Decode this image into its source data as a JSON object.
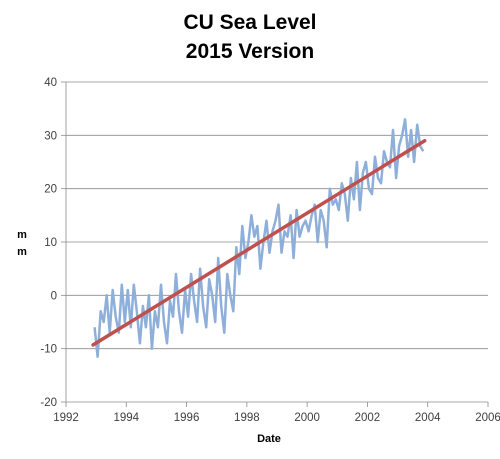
{
  "chart_data": {
    "type": "line",
    "title": [
      "CU Sea Level",
      "2015 Version"
    ],
    "xlabel": "Date",
    "ylabel": "m m",
    "xlim": [
      1992,
      2006
    ],
    "ylim": [
      -20,
      40
    ],
    "xticks": [
      1992,
      1994,
      1996,
      1998,
      2000,
      2002,
      2004,
      2006
    ],
    "yticks": [
      -20,
      -10,
      0,
      10,
      20,
      30,
      40
    ],
    "grid": "horizontal",
    "legend": "none",
    "series": [
      {
        "type": "line",
        "color": "#8EAFD9",
        "x": [
          1992.95,
          1993.05,
          1993.15,
          1993.25,
          1993.35,
          1993.45,
          1993.55,
          1993.65,
          1993.75,
          1993.85,
          1993.95,
          1994.05,
          1994.15,
          1994.25,
          1994.35,
          1994.45,
          1994.55,
          1994.65,
          1994.75,
          1994.85,
          1994.95,
          1995.05,
          1995.15,
          1995.25,
          1995.35,
          1995.45,
          1995.55,
          1995.65,
          1995.75,
          1995.85,
          1995.95,
          1996.05,
          1996.15,
          1996.25,
          1996.35,
          1996.45,
          1996.55,
          1996.65,
          1996.75,
          1996.85,
          1996.95,
          1997.05,
          1997.15,
          1997.25,
          1997.35,
          1997.45,
          1997.55,
          1997.65,
          1997.75,
          1997.85,
          1997.95,
          1998.05,
          1998.15,
          1998.25,
          1998.35,
          1998.45,
          1998.55,
          1998.65,
          1998.75,
          1998.85,
          1998.95,
          1999.05,
          1999.15,
          1999.25,
          1999.35,
          1999.45,
          1999.55,
          1999.65,
          1999.75,
          1999.85,
          1999.95,
          2000.05,
          2000.15,
          2000.25,
          2000.35,
          2000.45,
          2000.55,
          2000.65,
          2000.75,
          2000.85,
          2000.95,
          2001.05,
          2001.15,
          2001.25,
          2001.35,
          2001.45,
          2001.55,
          2001.65,
          2001.75,
          2001.85,
          2001.95,
          2002.05,
          2002.15,
          2002.25,
          2002.35,
          2002.45,
          2002.55,
          2002.65,
          2002.75,
          2002.85,
          2002.95,
          2003.05,
          2003.15,
          2003.25,
          2003.35,
          2003.45,
          2003.55,
          2003.65,
          2003.75,
          2003.85
        ],
        "y": [
          -6,
          -11.5,
          -3,
          -5,
          0,
          -7,
          1,
          -4,
          -7,
          2,
          -5,
          1,
          -6,
          2,
          -3,
          -9,
          -2,
          -6,
          0,
          -10,
          -3,
          -6,
          2,
          -5,
          -9,
          -1,
          -4,
          4,
          -3,
          -7,
          1,
          -4,
          4,
          -1,
          -5,
          5,
          -2,
          -6,
          3,
          0,
          -5,
          7,
          -2,
          -7,
          4,
          0,
          -3,
          9,
          4,
          13,
          7,
          10,
          15,
          11,
          13,
          5,
          10,
          14,
          8,
          12,
          14,
          17,
          8,
          12,
          11,
          15,
          7,
          16,
          11,
          13,
          14,
          12,
          15,
          17,
          10,
          16,
          14,
          9,
          20,
          17,
          18,
          16,
          21,
          19,
          14,
          22,
          18,
          25,
          16,
          23,
          25,
          20,
          19,
          26,
          22,
          21,
          27,
          25,
          24,
          31,
          22,
          28,
          30,
          33,
          26,
          31,
          25,
          32,
          28,
          27
        ]
      },
      {
        "type": "trend",
        "color": "#C0504D",
        "x": [
          1992.9,
          2003.9
        ],
        "y": [
          -9.3,
          29
        ]
      }
    ]
  }
}
